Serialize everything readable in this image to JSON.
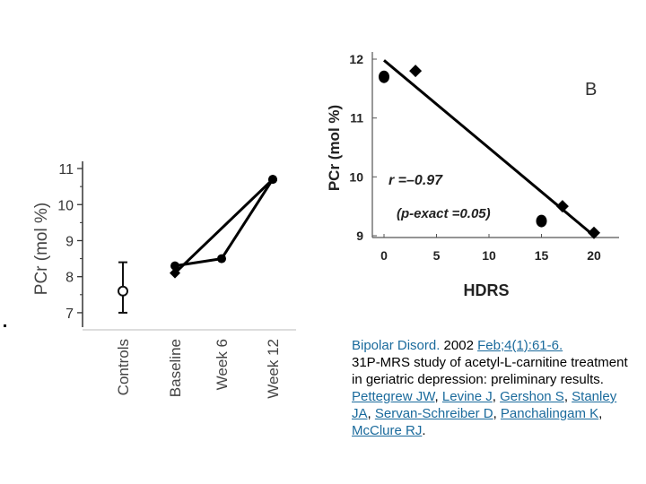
{
  "chart_data": [
    {
      "id": "A",
      "type": "line",
      "ylabel": "PCr (mol %)",
      "ylim": [
        6.6,
        11.2
      ],
      "yticks": [
        7,
        8,
        9,
        10,
        11
      ],
      "categories": [
        "Controls",
        "Baseline",
        "Week 6",
        "Week 12"
      ],
      "controls_point": {
        "category": "Controls",
        "value": 7.6,
        "error_low": 7.0,
        "error_high": 8.4
      },
      "series": [
        {
          "values": [
            null,
            8.3,
            8.5,
            10.7
          ]
        },
        {
          "values": [
            null,
            8.1,
            null,
            10.7
          ]
        }
      ]
    },
    {
      "id": "B",
      "type": "scatter",
      "panel_label": "B",
      "xlabel": "HDRS",
      "ylabel": "PCr (mol %)",
      "xlim": [
        -1,
        22
      ],
      "ylim": [
        8.85,
        12.15
      ],
      "xticks": [
        0,
        5,
        10,
        15,
        20
      ],
      "yticks": [
        9,
        10,
        11,
        12
      ],
      "points": [
        {
          "x": 0,
          "y": 11.7,
          "marker": "circle"
        },
        {
          "x": 3,
          "y": 11.8,
          "marker": "diamond"
        },
        {
          "x": 15,
          "y": 9.25,
          "marker": "circle"
        },
        {
          "x": 17,
          "y": 9.5,
          "marker": "diamond"
        },
        {
          "x": 20,
          "y": 9.05,
          "marker": "diamond"
        }
      ],
      "fit_line": {
        "x": [
          0,
          20
        ],
        "y": [
          11.98,
          9.0
        ]
      },
      "annotations": {
        "r": "r =–0.97",
        "p": "(p-exact =0.05)"
      }
    }
  ],
  "citation": {
    "journal": "Bipolar Disord.",
    "date_prefix": " 2002 ",
    "date_link": "Feb;4(1):61-6.",
    "title": "31P-MRS study of acetyl-L-carnitine treatment in geriatric depression: preliminary results.",
    "authors": [
      "Pettegrew JW",
      "Levine J",
      "Gershon S",
      "Stanley JA",
      "Servan-Schreiber D",
      "Panchalingam K",
      "McClure RJ"
    ]
  }
}
